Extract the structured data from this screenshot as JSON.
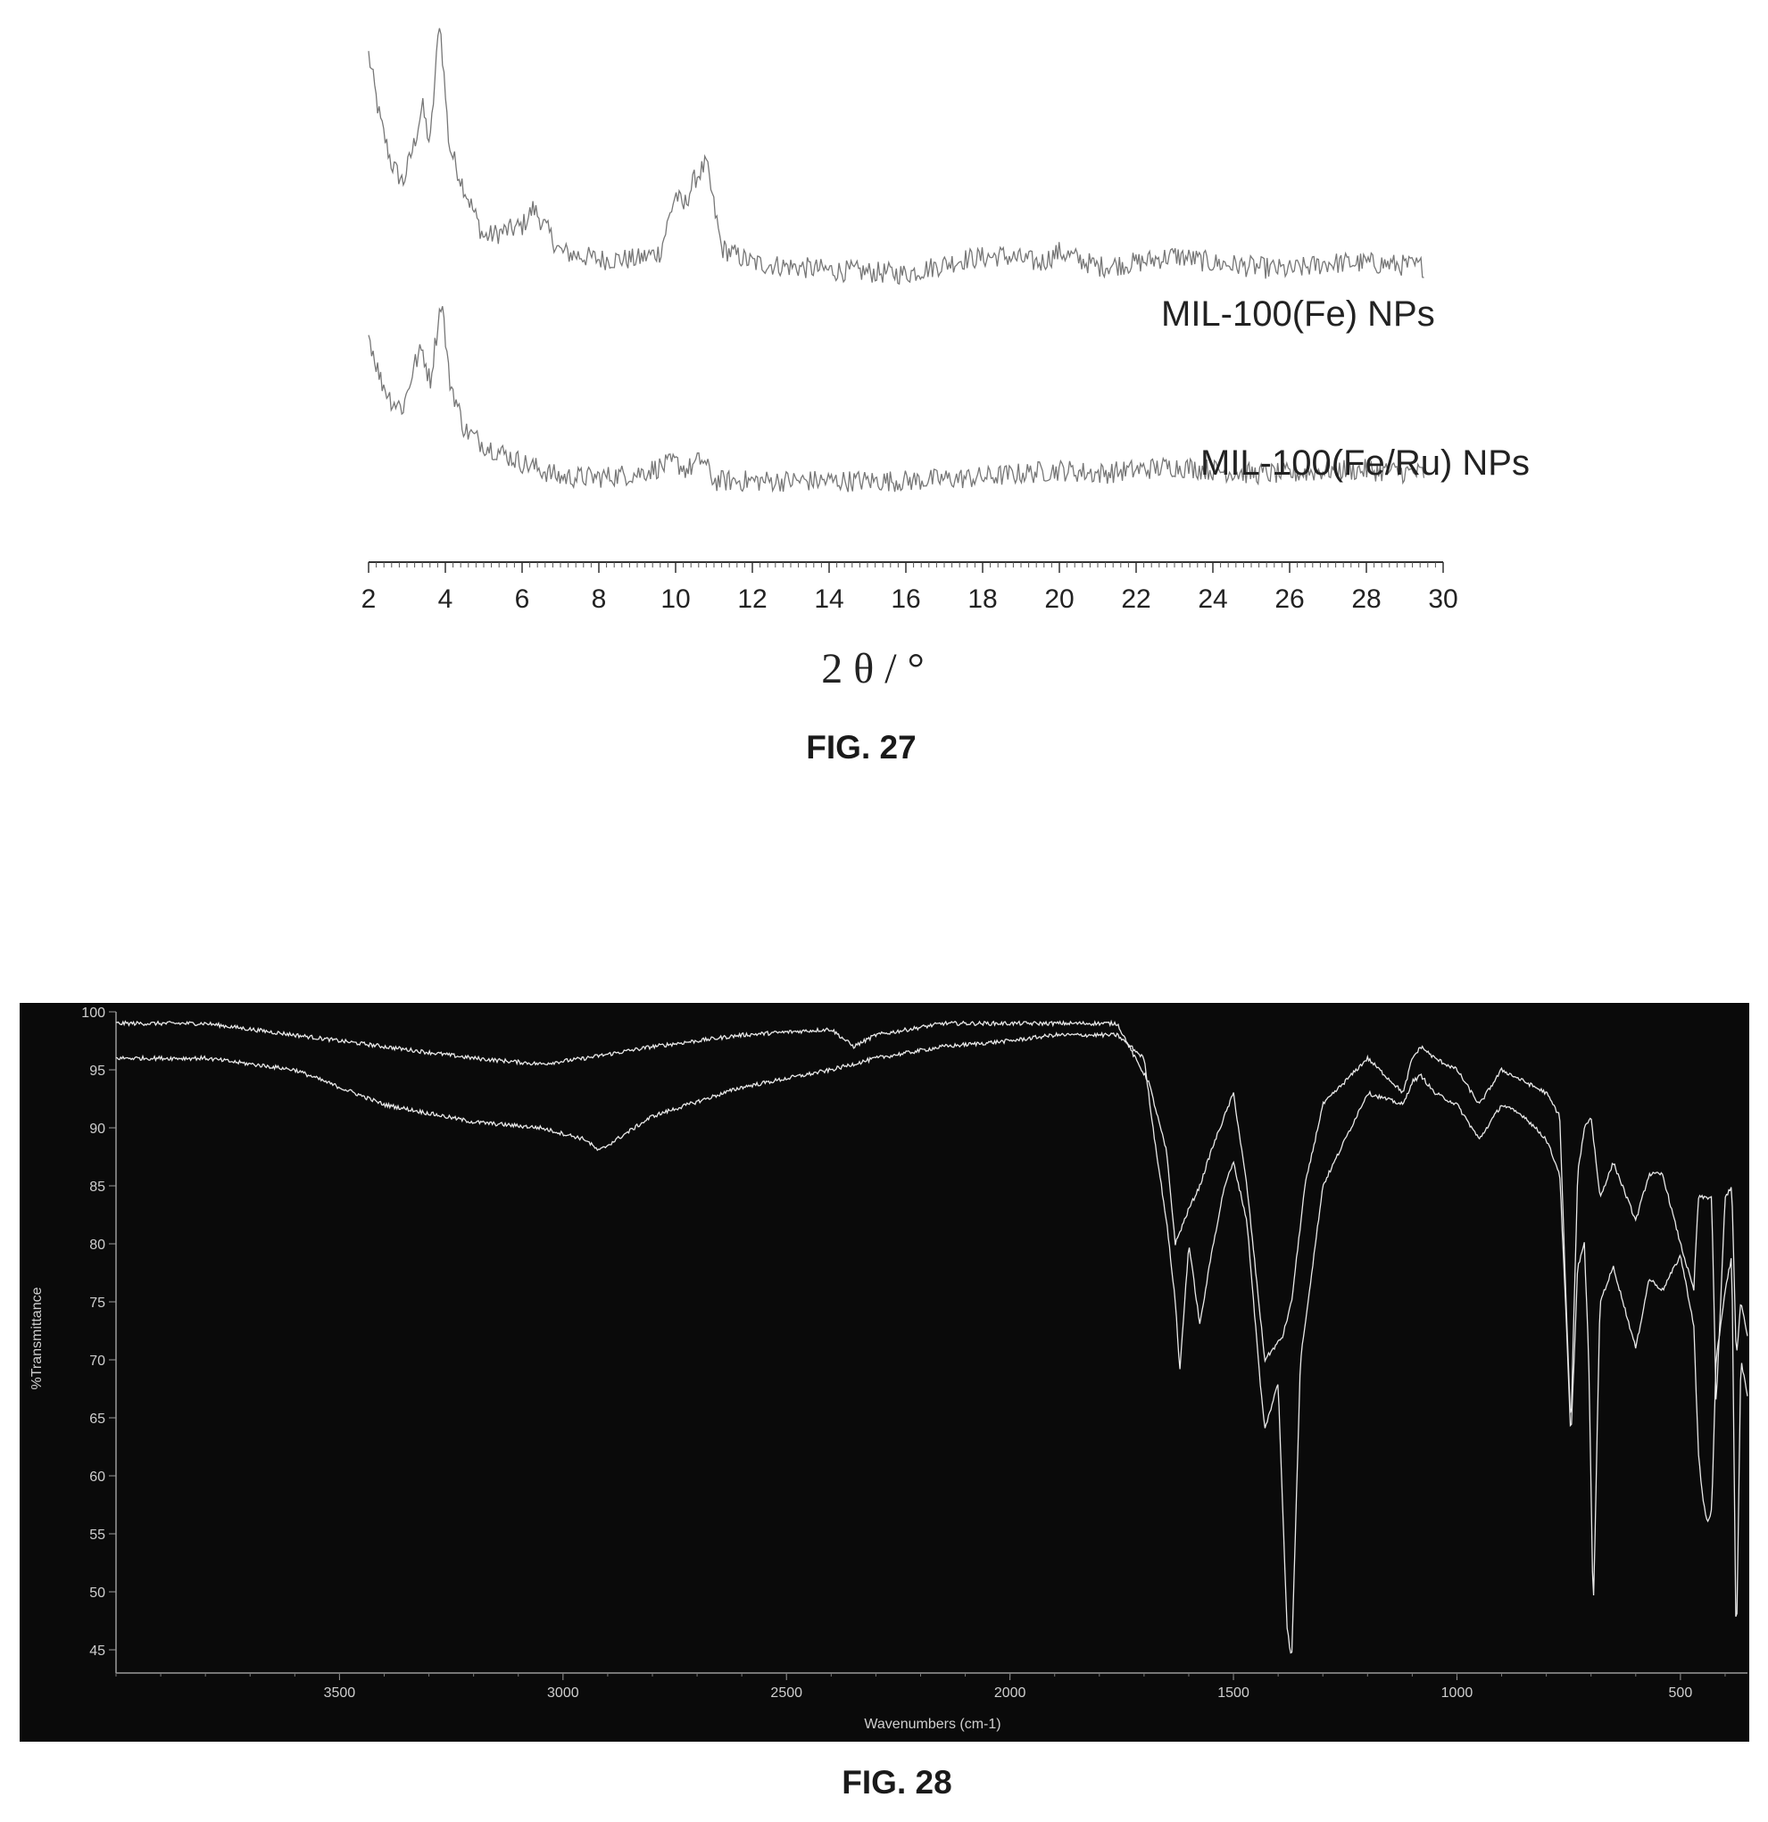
{
  "figures": {
    "fig27_caption": "FIG. 27",
    "fig28_caption": "FIG. 28"
  },
  "chart_data": [
    {
      "type": "line",
      "figure": "FIG. 27",
      "xlabel": "2 θ / °",
      "ylabel": "",
      "xlim": [
        2,
        30
      ],
      "x_ticks": [
        "2",
        "4",
        "6",
        "8",
        "10",
        "12",
        "14",
        "16",
        "18",
        "20",
        "22",
        "24",
        "26",
        "28",
        "30"
      ],
      "y_axis_shown": false,
      "grid": false,
      "colors": {
        "series": "#777777",
        "axis": "#333333"
      },
      "series": [
        {
          "name": "MIL-100(Fe) NPs",
          "x": [
            2.0,
            2.3,
            2.6,
            2.9,
            3.2,
            3.4,
            3.6,
            3.85,
            4.1,
            4.4,
            5.0,
            6.0,
            6.3,
            7.0,
            8.0,
            9.0,
            9.6,
            10.0,
            10.2,
            10.5,
            10.8,
            11.2,
            12.0,
            14.0,
            16.0,
            17.5,
            18.5,
            19.5,
            20.0,
            21.0,
            22.0,
            23.0,
            24.0,
            25.0,
            26.0,
            27.0,
            28.0,
            29.5
          ],
          "y": [
            90,
            72,
            60,
            55,
            66,
            76,
            65,
            100,
            65,
            56,
            40,
            43,
            48,
            36,
            34,
            34,
            36,
            52,
            48,
            56,
            60,
            37,
            33,
            31,
            30,
            34,
            35,
            33,
            36,
            32,
            33,
            35,
            33,
            32,
            31,
            33,
            33,
            32
          ]
        },
        {
          "name": "MIL-100(Fe/Ru) NPs",
          "x": [
            2.0,
            2.3,
            2.6,
            2.9,
            3.2,
            3.4,
            3.6,
            3.9,
            4.1,
            4.5,
            5.0,
            6.0,
            7.0,
            8.0,
            9.0,
            10.0,
            10.3,
            10.7,
            11.0,
            12.0,
            14.0,
            16.0,
            18.0,
            20.0,
            21.0,
            22.0,
            23.0,
            24.0,
            25.0,
            26.0,
            27.0,
            28.0,
            29.5
          ],
          "y": [
            50,
            38,
            32,
            30,
            42,
            46,
            37,
            60,
            38,
            24,
            20,
            15,
            11,
            11,
            12,
            15,
            13,
            16,
            10,
            10,
            10,
            10,
            11,
            13,
            12,
            13,
            14,
            13,
            12,
            12,
            13,
            13,
            12
          ]
        }
      ]
    },
    {
      "type": "line",
      "figure": "FIG. 28",
      "title": "",
      "xlabel": "Wavenumbers (cm-1)",
      "ylabel": "%Transmittance",
      "xlim": [
        4000,
        350
      ],
      "ylim": [
        43,
        100
      ],
      "x_ticks": [
        "3500",
        "3000",
        "2500",
        "2000",
        "1500",
        "1000",
        "500"
      ],
      "y_ticks": [
        "100",
        "95",
        "90",
        "85",
        "80",
        "75",
        "70",
        "65",
        "60",
        "55",
        "50",
        "45"
      ],
      "grid": false,
      "colors": {
        "background": "#0a0a0a",
        "series": "#e8e8e8",
        "text": "#cfcfcf"
      },
      "series": [
        {
          "x": [
            4000,
            3800,
            3600,
            3400,
            3200,
            3050,
            2950,
            2800,
            2600,
            2400,
            2350,
            2300,
            2150,
            2000,
            1900,
            1760,
            1720,
            1690,
            1650,
            1630,
            1600,
            1575,
            1550,
            1500,
            1470,
            1430,
            1390,
            1370,
            1340,
            1300,
            1200,
            1120,
            1100,
            1080,
            1050,
            1000,
            950,
            900,
            850,
            800,
            770,
            755,
            745,
            730,
            715,
            700,
            680,
            650,
            600,
            570,
            540,
            500,
            470,
            460,
            450,
            430,
            420,
            400,
            385,
            375,
            365,
            350
          ],
          "y": [
            99,
            99,
            98,
            97,
            96,
            95.5,
            96,
            97,
            98,
            98.5,
            97,
            98,
            99,
            99,
            99,
            99,
            96,
            94,
            88,
            80,
            83,
            85,
            88,
            93,
            85,
            70,
            72,
            75,
            85,
            92,
            96,
            93,
            96,
            97,
            96,
            95,
            92,
            95,
            94,
            93,
            91,
            74,
            64,
            86,
            90,
            91,
            84,
            87,
            82,
            86,
            86,
            80,
            76,
            84,
            84,
            84,
            66,
            84,
            85,
            70,
            75,
            72
          ]
        },
        {
          "x": [
            4000,
            3800,
            3600,
            3400,
            3200,
            3050,
            2950,
            2920,
            2880,
            2800,
            2600,
            2400,
            2350,
            2300,
            2150,
            2000,
            1900,
            1760,
            1700,
            1680,
            1650,
            1630,
            1620,
            1600,
            1575,
            1550,
            1520,
            1500,
            1470,
            1440,
            1430,
            1400,
            1380,
            1370,
            1350,
            1300,
            1200,
            1120,
            1100,
            1080,
            1050,
            1000,
            950,
            900,
            850,
            800,
            770,
            755,
            745,
            730,
            715,
            705,
            695,
            680,
            650,
            600,
            570,
            540,
            500,
            470,
            460,
            450,
            440,
            430,
            420,
            400,
            385,
            375,
            365,
            350
          ],
          "y": [
            96,
            96,
            95,
            92,
            90.5,
            90,
            89,
            88,
            89,
            91,
            93.5,
            95,
            95.5,
            96,
            97,
            97.5,
            98,
            98,
            96,
            90,
            82,
            75,
            69,
            80,
            73,
            79,
            85,
            87,
            82,
            68,
            64,
            68,
            47,
            44,
            70,
            85,
            93,
            92,
            94,
            94.5,
            93,
            92,
            89,
            92,
            91,
            89,
            86,
            73,
            63,
            78,
            80,
            70,
            48,
            75,
            78,
            71,
            77,
            76,
            79,
            73,
            62,
            58,
            56,
            57,
            70,
            76,
            79,
            44,
            70,
            67
          ]
        }
      ]
    }
  ]
}
